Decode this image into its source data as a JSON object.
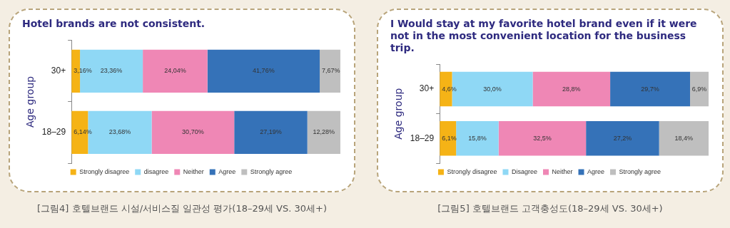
{
  "chart_data": [
    {
      "type": "bar",
      "orientation": "horizontal",
      "stacked": true,
      "title": "Hotel brands are not consistent.",
      "ylabel": "Age group",
      "categories": [
        "30+",
        "18–29"
      ],
      "xlim": [
        0,
        100
      ],
      "tick_labels": "y",
      "grid": false,
      "legend": "bottom",
      "annotations": [
        "[그림4] 호텔브랜드 시설/서비스질 일관성 평가(18–29세 VS. 30세+)"
      ],
      "series": [
        {
          "name": "Strongly disagree",
          "color": "#f5b316",
          "values": [
            3.16,
            6.14
          ],
          "value_labels": [
            "3,16%",
            "6,14%"
          ]
        },
        {
          "name": "disagree",
          "color": "#8fd8f5",
          "values": [
            23.36,
            23.68
          ],
          "value_labels": [
            "23,36%",
            "23,68%"
          ]
        },
        {
          "name": "Neither",
          "color": "#ef87b5",
          "values": [
            24.04,
            30.7
          ],
          "value_labels": [
            "24,04%",
            "30,70%"
          ]
        },
        {
          "name": "Agree",
          "color": "#3572b8",
          "values": [
            41.76,
            27.19
          ],
          "value_labels": [
            "41,76%",
            "27,19%"
          ]
        },
        {
          "name": "Strongly agree",
          "color": "#bfbfbf",
          "values": [
            7.67,
            12.28
          ],
          "value_labels": [
            "7,67%",
            "12,28%"
          ]
        }
      ]
    },
    {
      "type": "bar",
      "orientation": "horizontal",
      "stacked": true,
      "title": "I Would stay at my favorite hotel brand even if it were not in the most convenient location for the business trip.",
      "ylabel": "Age group",
      "categories": [
        "30+",
        "18–29"
      ],
      "xlim": [
        0,
        100
      ],
      "tick_labels": "y",
      "grid": false,
      "legend": "bottom",
      "annotations": [
        "[그림5] 호텔브랜드 고객충성도(18–29세 VS. 30세+)"
      ],
      "series": [
        {
          "name": "Strongly disagree",
          "color": "#f5b316",
          "values": [
            4.6,
            6.1
          ],
          "value_labels": [
            "4,6%",
            "6,1%"
          ]
        },
        {
          "name": "Disagree",
          "color": "#8fd8f5",
          "values": [
            30.0,
            15.8
          ],
          "value_labels": [
            "30,0%",
            "15,8%"
          ]
        },
        {
          "name": "Neither",
          "color": "#ef87b5",
          "values": [
            28.8,
            32.5
          ],
          "value_labels": [
            "28,8%",
            "32,5%"
          ]
        },
        {
          "name": "Agree",
          "color": "#3572b8",
          "values": [
            29.7,
            27.2
          ],
          "value_labels": [
            "29,7%",
            "27,2%"
          ]
        },
        {
          "name": "Strongly agree",
          "color": "#bfbfbf",
          "values": [
            6.9,
            18.4
          ],
          "value_labels": [
            "6,9%",
            "18,4%"
          ]
        }
      ]
    }
  ]
}
